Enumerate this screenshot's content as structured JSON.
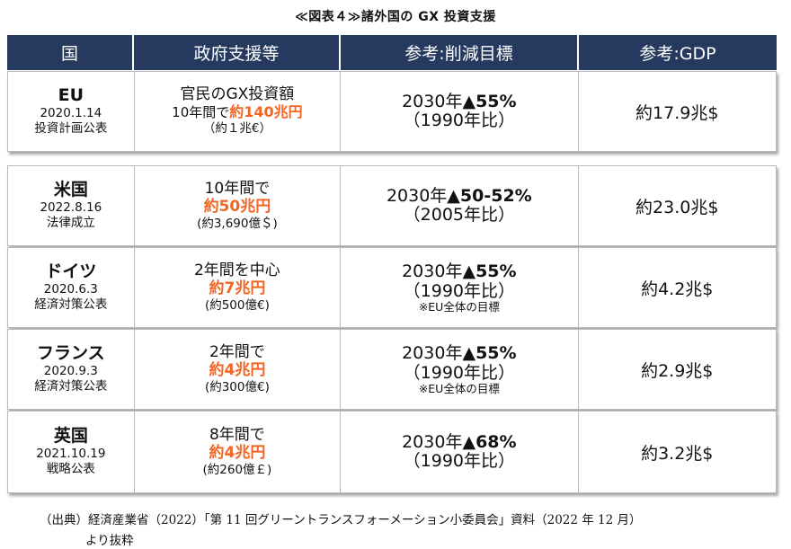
{
  "title": "≪図表４≫諸外国の GX 投資支援",
  "headers": [
    "国",
    "政府支援等",
    "参考:削減目標",
    "参考:GDP"
  ],
  "colors": {
    "header_bg": "#253a5e",
    "accent": "#f26522"
  },
  "rows": [
    {
      "country": "EU",
      "date": "2020.1.14",
      "event": "投資計画公表",
      "support_line1": "官民のGX投資額",
      "support_line2_prefix": "10年間で",
      "support_line2_amount": "約140兆円",
      "support_note": "（約１兆€）",
      "target_year": "2030年",
      "target_value": "▲55%",
      "target_base": "（1990年比）",
      "target_note": "",
      "gdp": "約17.9兆$"
    },
    {
      "country": "米国",
      "date": "2022.8.16",
      "event": "法律成立",
      "support_line1": "10年間で",
      "support_amount": "約50兆円",
      "support_note": "(約3,690億＄)",
      "target_year": "2030年",
      "target_value": "▲50-52%",
      "target_base": "（2005年比）",
      "target_note": "",
      "gdp": "約23.0兆$"
    },
    {
      "country": "ドイツ",
      "date": "2020.6.3",
      "event": "経済対策公表",
      "support_line1": "2年間を中心",
      "support_amount": "約7兆円",
      "support_note": "(約500億€)",
      "target_year": "2030年",
      "target_value": "▲55%",
      "target_base": "（1990年比）",
      "target_note": "※EU全体の目標",
      "gdp": "約4.2兆$"
    },
    {
      "country": "フランス",
      "date": "2020.9.3",
      "event": "経済対策公表",
      "support_line1": "2年間で",
      "support_amount": "約4兆円",
      "support_note": "(約300億€)",
      "target_year": "2030年",
      "target_value": "▲55%",
      "target_base": "（1990年比）",
      "target_note": "※EU全体の目標",
      "gdp": "約2.9兆$"
    },
    {
      "country": "英国",
      "date": "2021.10.19",
      "event": "戦略公表",
      "support_line1": "8年間で",
      "support_amount": "約4兆円",
      "support_note": "(約260億￡)",
      "target_year": "2030年",
      "target_value": "▲68%",
      "target_base": "（1990年比）",
      "target_note": "",
      "gdp": "約3.2兆$"
    }
  ],
  "footer": {
    "line1": "（出典）経済産業省（2022）「第 11 回グリーントランスフォーメーション小委員会」資料（2022 年 12 月）",
    "line2": "より抜粋"
  }
}
